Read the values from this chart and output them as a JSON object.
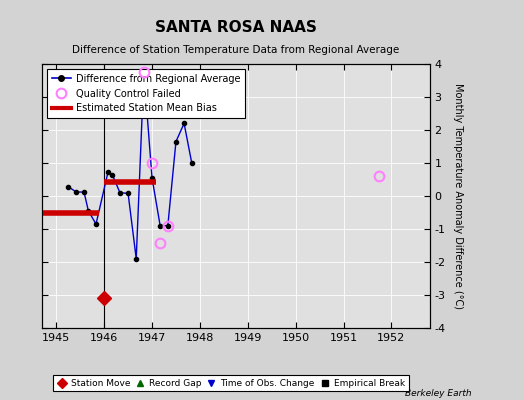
{
  "title": "SANTA ROSA NAAS",
  "subtitle": "Difference of Station Temperature Data from Regional Average",
  "ylabel_right": "Monthly Temperature Anomaly Difference (°C)",
  "xlim": [
    1944.7,
    1952.8
  ],
  "ylim": [
    -4,
    4
  ],
  "yticks": [
    -4,
    -3,
    -2,
    -1,
    0,
    1,
    2,
    3,
    4
  ],
  "xticks": [
    1945,
    1946,
    1947,
    1948,
    1949,
    1950,
    1951,
    1952
  ],
  "bg_color": "#d3d3d3",
  "plot_bg_color": "#e0e0e0",
  "line_color": "#0000cc",
  "bias_color": "#cc0000",
  "station_move_color": "#cc0000",
  "qc_fail_color": "#ff80ff",
  "watermark": "Berkeley Earth",
  "main_line_data": [
    [
      1945.25,
      0.28
    ],
    [
      1945.42,
      0.12
    ],
    [
      1945.58,
      0.12
    ],
    [
      1945.67,
      -0.45
    ],
    [
      1945.83,
      -0.85
    ],
    [
      1946.08,
      0.72
    ],
    [
      1946.17,
      0.65
    ],
    [
      1946.33,
      0.1
    ],
    [
      1946.5,
      0.08
    ],
    [
      1946.67,
      -1.9
    ],
    [
      1946.83,
      3.75
    ],
    [
      1947.0,
      0.55
    ],
    [
      1947.17,
      -0.9
    ],
    [
      1947.33,
      -0.9
    ],
    [
      1947.5,
      1.65
    ],
    [
      1947.67,
      2.2
    ],
    [
      1947.83,
      1.0
    ]
  ],
  "bias_segments": [
    {
      "x": [
        1944.7,
        1945.9
      ],
      "y": [
        -0.5,
        -0.5
      ]
    },
    {
      "x": [
        1946.0,
        1947.08
      ],
      "y": [
        0.42,
        0.42
      ]
    }
  ],
  "qc_fail_points": [
    [
      1946.83,
      3.75
    ],
    [
      1947.0,
      1.0
    ],
    [
      1947.17,
      -1.42
    ],
    [
      1947.33,
      -0.9
    ],
    [
      1951.75,
      0.6
    ]
  ],
  "station_move_x": 1946.0,
  "station_move_marker": [
    1946.0,
    -3.1
  ],
  "vline_color": "#000000",
  "vline_lw": 0.8
}
